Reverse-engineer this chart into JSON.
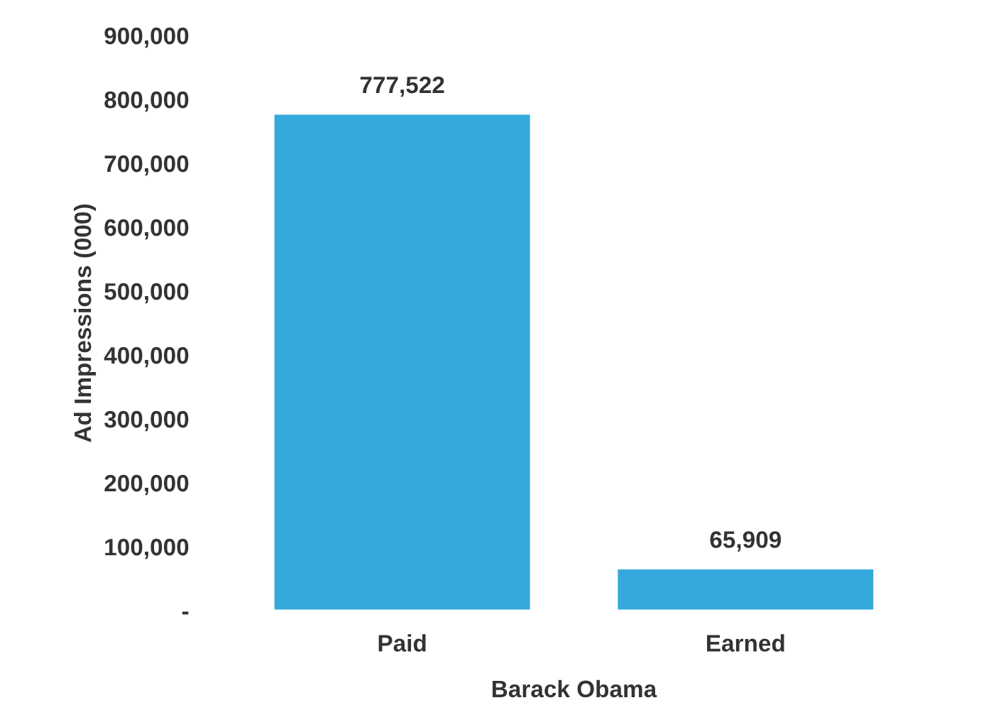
{
  "chart_data": {
    "type": "bar",
    "ylabel": "Ad Impressions (000)",
    "xlabel": "Barack Obama",
    "categories": [
      "Paid",
      "Earned"
    ],
    "values": [
      777522,
      65909
    ],
    "value_labels": [
      "777,522",
      "65,909"
    ],
    "color": "#35a9dc",
    "ylim": [
      0,
      900000
    ],
    "yticks": [
      {
        "value": 0,
        "label": "-"
      },
      {
        "value": 100000,
        "label": "100,000"
      },
      {
        "value": 200000,
        "label": "200,000"
      },
      {
        "value": 300000,
        "label": "300,000"
      },
      {
        "value": 400000,
        "label": "400,000"
      },
      {
        "value": 500000,
        "label": "500,000"
      },
      {
        "value": 600000,
        "label": "600,000"
      },
      {
        "value": 700000,
        "label": "700,000"
      },
      {
        "value": 800000,
        "label": "800,000"
      },
      {
        "value": 900000,
        "label": "900,000"
      }
    ],
    "grid": false
  }
}
